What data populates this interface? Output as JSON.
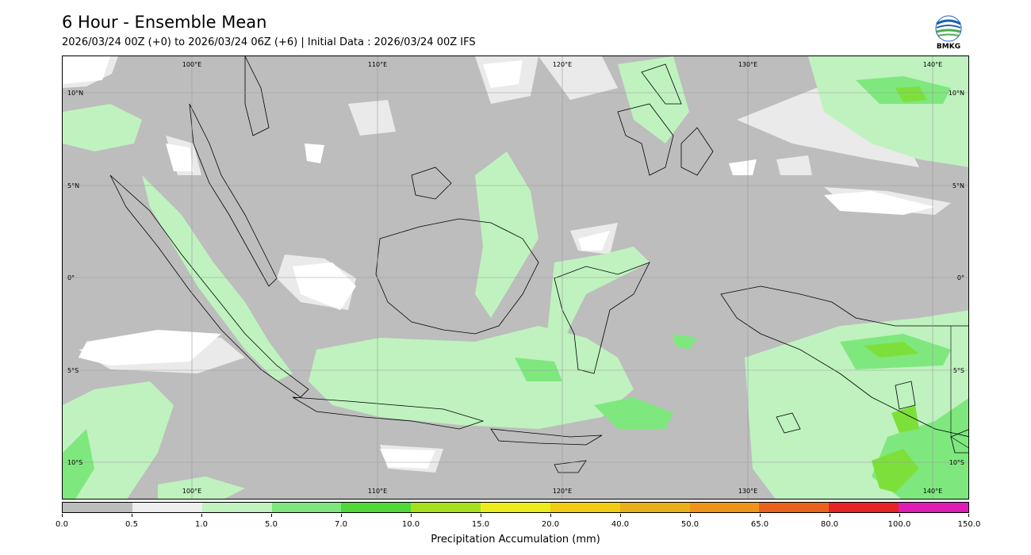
{
  "header": {
    "title": "6 Hour - Ensemble Mean",
    "subtitle": "2026/03/24 00Z (+0) to 2026/03/24 06Z (+6) | Initial Data : 2026/03/24 00Z IFS",
    "logo_text": "BMKG"
  },
  "map": {
    "lon_labels_top": [
      "100°E",
      "110°E",
      "120°E",
      "130°E",
      "140°E"
    ],
    "lon_labels_bottom": [
      "100°E",
      "110°E",
      "120°E",
      "130°E",
      "140°E"
    ],
    "lat_labels_left": [
      "10°N",
      "5°N",
      "0°",
      "5°S",
      "10°S"
    ],
    "lat_labels_right": [
      "10°N",
      "5°N",
      "0°",
      "5°S",
      "10°S"
    ]
  },
  "colorbar": {
    "title": "Precipitation Accumulation (mm)",
    "ticks": [
      "0.0",
      "0.5",
      "1.0",
      "5.0",
      "7.0",
      "10.0",
      "15.0",
      "20.0",
      "40.0",
      "50.0",
      "65.0",
      "80.0",
      "100.0",
      "150.0"
    ],
    "colors": [
      "#bdbdbd",
      "#eeeeee",
      "#bff2bf",
      "#7ee87e",
      "#50d838",
      "#a6e01c",
      "#ecec1c",
      "#f2cc12",
      "#eab018",
      "#ee9418",
      "#e8621c",
      "#e62424",
      "#df1cb4"
    ]
  }
}
